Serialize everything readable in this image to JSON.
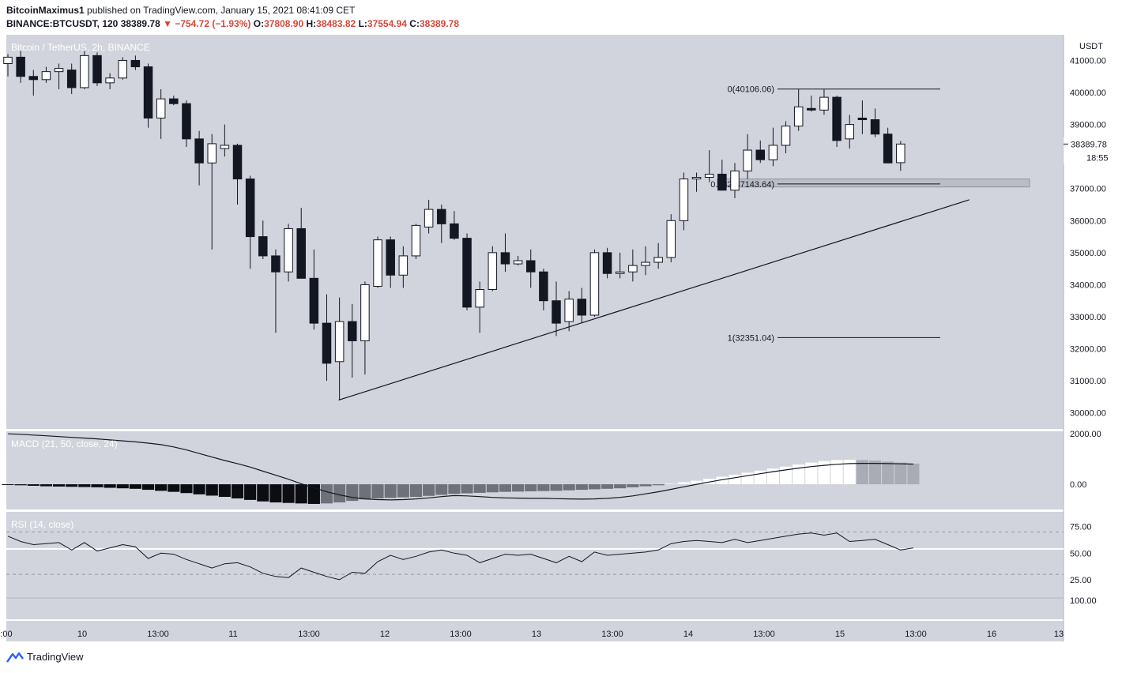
{
  "header": {
    "author": "BitcoinMaximus1",
    "published": "published on TradingView.com, January 15, 2021 08:41:09 CET",
    "symbol": "BINANCE:BTCUSDT, 120",
    "last": "38389.78",
    "change": "▼ −754.72 (−1.93%)",
    "o_label": "O:",
    "o_value": "37808.90",
    "h_label": "H:",
    "h_value": "38483.82",
    "l_label": "L:",
    "l_value": "37554.94",
    "c_label": "C:",
    "c_value": "38389.78"
  },
  "chart_data": {
    "type": "candlestick",
    "title": "Bitcoin / TetherUS, 2h, BINANCE",
    "currency": "USDT",
    "ylim": [
      29500,
      41800
    ],
    "price_ticks": [
      "41000.00",
      "40000.00",
      "39000.00",
      "38000.00",
      "37000.00",
      "36000.00",
      "35000.00",
      "34000.00",
      "33000.00",
      "32000.00",
      "31000.00",
      "30000.00"
    ],
    "time_labels": [
      ":00",
      "10",
      "13:00",
      "11",
      "13:00",
      "12",
      "13:00",
      "13",
      "13:00",
      "14",
      "13:00",
      "15",
      "13:00",
      "16",
      "13"
    ],
    "last_price_label": "38389.78",
    "countdown_label": "18:55",
    "candles": [
      {
        "o": 40900,
        "h": 41200,
        "l": 40500,
        "c": 41100
      },
      {
        "o": 41100,
        "h": 41300,
        "l": 40300,
        "c": 40500
      },
      {
        "o": 40500,
        "h": 40700,
        "l": 39900,
        "c": 40400
      },
      {
        "o": 40400,
        "h": 40800,
        "l": 40300,
        "c": 40650
      },
      {
        "o": 40650,
        "h": 40900,
        "l": 40100,
        "c": 40750
      },
      {
        "o": 40700,
        "h": 40900,
        "l": 39950,
        "c": 40150
      },
      {
        "o": 40150,
        "h": 41300,
        "l": 40100,
        "c": 41150
      },
      {
        "o": 41150,
        "h": 41250,
        "l": 40200,
        "c": 40300
      },
      {
        "o": 40300,
        "h": 40600,
        "l": 40100,
        "c": 40450
      },
      {
        "o": 40450,
        "h": 41100,
        "l": 40400,
        "c": 41000
      },
      {
        "o": 41000,
        "h": 41150,
        "l": 40700,
        "c": 40800
      },
      {
        "o": 40800,
        "h": 40900,
        "l": 38900,
        "c": 39200
      },
      {
        "o": 39200,
        "h": 40100,
        "l": 38550,
        "c": 39800
      },
      {
        "o": 39800,
        "h": 39900,
        "l": 39600,
        "c": 39650
      },
      {
        "o": 39650,
        "h": 39750,
        "l": 38300,
        "c": 38550
      },
      {
        "o": 38550,
        "h": 38800,
        "l": 37100,
        "c": 37800
      },
      {
        "o": 37800,
        "h": 38700,
        "l": 35100,
        "c": 38400
      },
      {
        "o": 38250,
        "h": 39000,
        "l": 38000,
        "c": 38350
      },
      {
        "o": 38350,
        "h": 38400,
        "l": 36500,
        "c": 37300
      },
      {
        "o": 37300,
        "h": 37400,
        "l": 34500,
        "c": 35500
      },
      {
        "o": 35500,
        "h": 36000,
        "l": 34800,
        "c": 34900
      },
      {
        "o": 34900,
        "h": 35100,
        "l": 32500,
        "c": 34400
      },
      {
        "o": 34400,
        "h": 35900,
        "l": 34100,
        "c": 35750
      },
      {
        "o": 35750,
        "h": 36400,
        "l": 34200,
        "c": 34200
      },
      {
        "o": 34200,
        "h": 35100,
        "l": 32600,
        "c": 32800
      },
      {
        "o": 32800,
        "h": 33700,
        "l": 31000,
        "c": 31550
      },
      {
        "o": 31600,
        "h": 33600,
        "l": 30400,
        "c": 32850
      },
      {
        "o": 32850,
        "h": 33400,
        "l": 31100,
        "c": 32250
      },
      {
        "o": 32250,
        "h": 34100,
        "l": 31200,
        "c": 34000
      },
      {
        "o": 33950,
        "h": 35500,
        "l": 33900,
        "c": 35400
      },
      {
        "o": 35400,
        "h": 35500,
        "l": 33900,
        "c": 34300
      },
      {
        "o": 34300,
        "h": 35200,
        "l": 33900,
        "c": 34900
      },
      {
        "o": 34900,
        "h": 35900,
        "l": 34800,
        "c": 35850
      },
      {
        "o": 35800,
        "h": 36650,
        "l": 35600,
        "c": 36350
      },
      {
        "o": 36350,
        "h": 36500,
        "l": 35300,
        "c": 35900
      },
      {
        "o": 35900,
        "h": 36300,
        "l": 35400,
        "c": 35450
      },
      {
        "o": 35450,
        "h": 35600,
        "l": 33200,
        "c": 33300
      },
      {
        "o": 33300,
        "h": 34100,
        "l": 32500,
        "c": 33850
      },
      {
        "o": 33850,
        "h": 35200,
        "l": 33800,
        "c": 35000
      },
      {
        "o": 35000,
        "h": 35600,
        "l": 34400,
        "c": 34650
      },
      {
        "o": 34650,
        "h": 34900,
        "l": 34600,
        "c": 34750
      },
      {
        "o": 34750,
        "h": 35100,
        "l": 33900,
        "c": 34400
      },
      {
        "o": 34400,
        "h": 34500,
        "l": 33200,
        "c": 33500
      },
      {
        "o": 33500,
        "h": 34100,
        "l": 32400,
        "c": 32800
      },
      {
        "o": 32850,
        "h": 33800,
        "l": 32550,
        "c": 33550
      },
      {
        "o": 33550,
        "h": 33900,
        "l": 32800,
        "c": 33050
      },
      {
        "o": 33050,
        "h": 35100,
        "l": 33000,
        "c": 35000
      },
      {
        "o": 35000,
        "h": 35150,
        "l": 34200,
        "c": 34350
      },
      {
        "o": 34350,
        "h": 35000,
        "l": 34200,
        "c": 34400
      },
      {
        "o": 34400,
        "h": 35100,
        "l": 34100,
        "c": 34600
      },
      {
        "o": 34600,
        "h": 35200,
        "l": 34300,
        "c": 34700
      },
      {
        "o": 34700,
        "h": 35300,
        "l": 34500,
        "c": 34850
      },
      {
        "o": 34850,
        "h": 36200,
        "l": 34700,
        "c": 36000
      },
      {
        "o": 36000,
        "h": 37500,
        "l": 35700,
        "c": 37300
      },
      {
        "o": 37300,
        "h": 37500,
        "l": 36900,
        "c": 37350
      },
      {
        "o": 37350,
        "h": 38200,
        "l": 37200,
        "c": 37450
      },
      {
        "o": 37450,
        "h": 37900,
        "l": 37000,
        "c": 36950
      },
      {
        "o": 36950,
        "h": 37800,
        "l": 36700,
        "c": 37550
      },
      {
        "o": 37550,
        "h": 38700,
        "l": 37300,
        "c": 38200
      },
      {
        "o": 38200,
        "h": 38500,
        "l": 37800,
        "c": 37900
      },
      {
        "o": 37900,
        "h": 38900,
        "l": 37700,
        "c": 38350
      },
      {
        "o": 38350,
        "h": 39100,
        "l": 38100,
        "c": 38950
      },
      {
        "o": 38950,
        "h": 40106,
        "l": 38800,
        "c": 39550
      },
      {
        "o": 39500,
        "h": 39900,
        "l": 39400,
        "c": 39450
      },
      {
        "o": 39450,
        "h": 40100,
        "l": 39300,
        "c": 39850
      },
      {
        "o": 39850,
        "h": 39900,
        "l": 38300,
        "c": 38500
      },
      {
        "o": 38550,
        "h": 39300,
        "l": 38250,
        "c": 39000
      },
      {
        "o": 39200,
        "h": 39750,
        "l": 38700,
        "c": 39150
      },
      {
        "o": 39150,
        "h": 39500,
        "l": 38600,
        "c": 38700
      },
      {
        "o": 38700,
        "h": 38900,
        "l": 37850,
        "c": 37800
      },
      {
        "o": 37808.9,
        "h": 38483.82,
        "l": 37554.94,
        "c": 38389.78
      }
    ],
    "fib_levels": [
      {
        "label": "0(40106.06)",
        "price": 40106.06
      },
      {
        "label": "0.382(37143.64)",
        "price": 37143.64
      },
      {
        "label": "1(32351.04)",
        "price": 32351.04
      }
    ],
    "trendline": {
      "from": {
        "candle": 26,
        "price": 30400
      },
      "to": {
        "candle": 76,
        "price": 36650
      }
    },
    "support_zone": {
      "from_candle": 56,
      "to_candle": 78,
      "low": 37050,
      "high": 37300
    },
    "macd": {
      "label": "MACD (21, 50, close, 24)",
      "ticks": [
        "2000.00",
        "0.00"
      ],
      "ylim": [
        -1000,
        2100
      ],
      "histogram": [
        -30,
        -40,
        -60,
        -80,
        -90,
        -100,
        -110,
        -120,
        -140,
        -160,
        -180,
        -220,
        -260,
        -300,
        -350,
        -400,
        -450,
        -500,
        -560,
        -620,
        -680,
        -720,
        -740,
        -760,
        -780,
        -760,
        -720,
        -660,
        -600,
        -560,
        -540,
        -520,
        -500,
        -460,
        -420,
        -380,
        -360,
        -340,
        -320,
        -300,
        -290,
        -280,
        -270,
        -260,
        -240,
        -220,
        -200,
        -180,
        -160,
        -120,
        -80,
        -40,
        20,
        80,
        140,
        220,
        300,
        380,
        460,
        540,
        620,
        700,
        780,
        860,
        920,
        960,
        970,
        960,
        940,
        900,
        860,
        820
      ],
      "signal": [
        2000,
        1980,
        1950,
        1920,
        1890,
        1860,
        1830,
        1800,
        1760,
        1720,
        1680,
        1630,
        1570,
        1480,
        1360,
        1220,
        1080,
        940,
        820,
        680,
        520,
        360,
        200,
        20,
        -140,
        -300,
        -420,
        -520,
        -580,
        -610,
        -620,
        -610,
        -580,
        -540,
        -490,
        -450,
        -460,
        -490,
        -520,
        -540,
        -550,
        -560,
        -560,
        -570,
        -580,
        -590,
        -580,
        -560,
        -520,
        -460,
        -380,
        -300,
        -200,
        -100,
        0,
        90,
        180,
        260,
        340,
        420,
        500,
        570,
        640,
        700,
        750,
        790,
        820,
        830,
        830,
        820,
        810,
        800
      ]
    },
    "rsi": {
      "label": "RSI (14, close)",
      "ticks": [
        "75.00",
        "50.00",
        "25.00",
        "100.00"
      ],
      "upper": 70,
      "lower": 30,
      "mid": 54,
      "values": [
        66,
        61,
        58,
        59,
        60,
        53,
        60,
        52,
        55,
        58,
        56,
        45,
        50,
        49,
        44,
        40,
        36,
        40,
        41,
        37,
        31,
        28,
        27,
        36,
        32,
        28,
        25,
        32,
        31,
        42,
        48,
        44,
        47,
        51,
        53,
        50,
        48,
        41,
        45,
        49,
        48,
        49,
        45,
        41,
        47,
        42,
        51,
        48,
        49,
        50,
        51,
        53,
        59,
        61,
        62,
        61,
        60,
        63,
        60,
        62,
        64,
        66,
        68,
        69,
        67,
        69,
        61,
        62,
        63,
        58,
        53,
        55
      ]
    }
  },
  "footer": {
    "brand": "TradingView"
  },
  "colors": {
    "plot_bg": "#d1d4dc",
    "candle_up": "#ffffff",
    "candle_down": "#131722",
    "axis_bg": "#ffffff"
  }
}
